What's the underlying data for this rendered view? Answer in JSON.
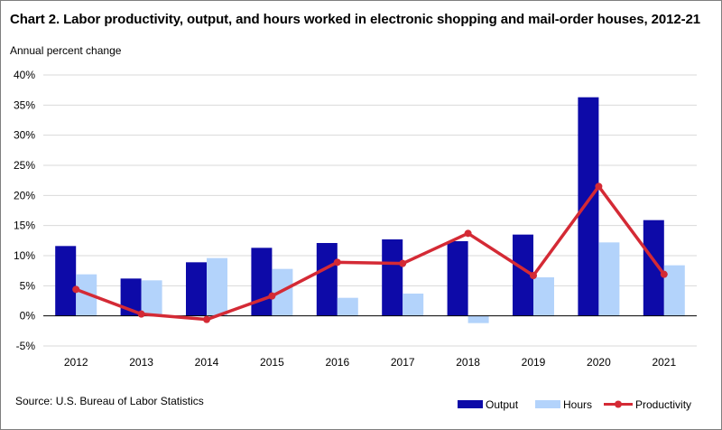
{
  "title": "Chart 2. Labor productivity, output, and hours worked in electronic shopping and mail-order houses, 2012-21",
  "source": "Source: U.S. Bureau of Labor Statistics",
  "colors": {
    "output": "#0d0aa8",
    "hours": "#b3d3fb",
    "productivity": "#d42a35",
    "grid": "#d9d9d9",
    "axis": "#000000"
  },
  "chart_data": {
    "type": "bar",
    "title": "Chart 2. Labor productivity, output, and hours worked in electronic shopping and mail-order houses, 2012-21",
    "ylabel": "Annual percent change",
    "xlabel": "",
    "ylim": [
      -5,
      40
    ],
    "yticks": [
      -5,
      0,
      5,
      10,
      15,
      20,
      25,
      30,
      35,
      40
    ],
    "ytick_labels": [
      "-5%",
      "0%",
      "5%",
      "10%",
      "15%",
      "20%",
      "25%",
      "30%",
      "35%",
      "40%"
    ],
    "grid": true,
    "legend_position": "bottom-right",
    "categories": [
      "2012",
      "2013",
      "2014",
      "2015",
      "2016",
      "2017",
      "2018",
      "2019",
      "2020",
      "2021"
    ],
    "series": [
      {
        "name": "Output",
        "type": "bar",
        "values": [
          11.6,
          6.2,
          8.9,
          11.3,
          12.1,
          12.7,
          12.4,
          13.5,
          36.3,
          15.9
        ]
      },
      {
        "name": "Hours",
        "type": "bar",
        "values": [
          6.9,
          5.9,
          9.6,
          7.8,
          3.0,
          3.7,
          -1.2,
          6.4,
          12.2,
          8.4
        ]
      },
      {
        "name": "Productivity",
        "type": "line",
        "values": [
          4.4,
          0.3,
          -0.6,
          3.3,
          8.9,
          8.7,
          13.7,
          6.7,
          21.5,
          6.9
        ]
      }
    ]
  }
}
